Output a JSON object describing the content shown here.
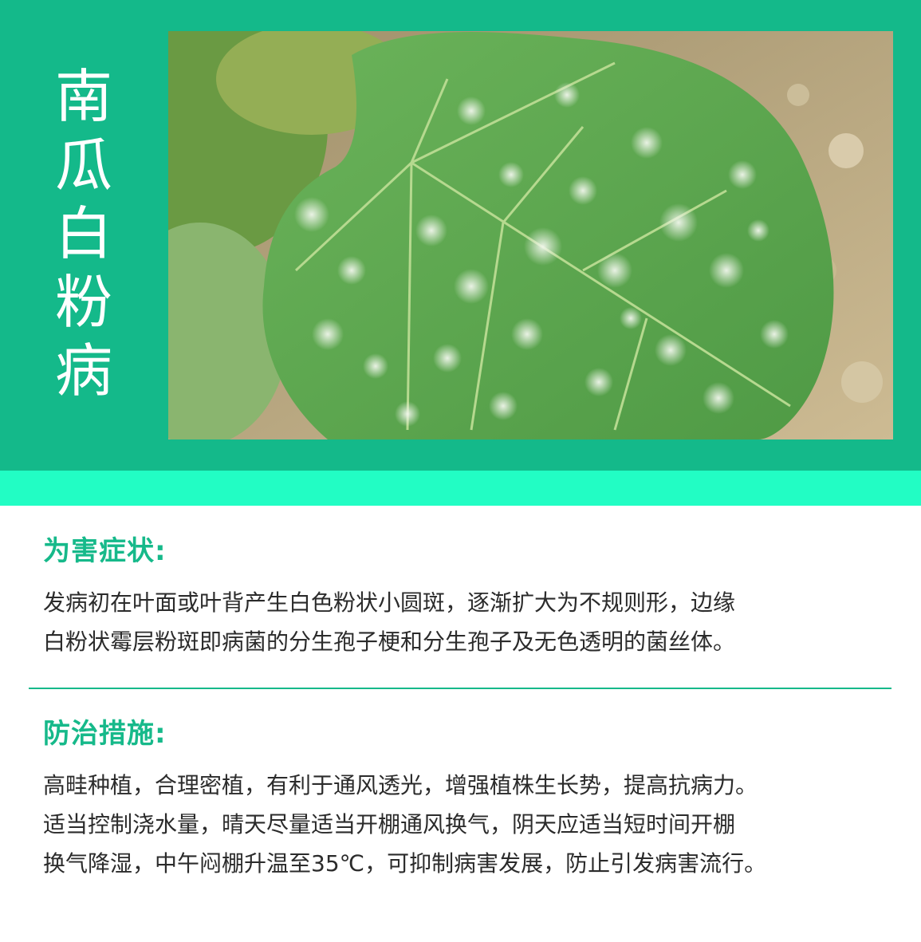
{
  "title": "南瓜白粉病",
  "photo": {
    "subject": "powdery-mildew-leaf-photo",
    "colors": {
      "leaf": "#5aa64e",
      "leaf_dark": "#3d8a3a",
      "vein": "#b6d98f",
      "spot": "#e6efe0",
      "soil": "#b8a47c"
    }
  },
  "colors": {
    "header": "#14b98a",
    "band": "#22fdc4",
    "accent": "#16b98a",
    "text": "#2b2b2b"
  },
  "symptoms": {
    "heading": "为害症状:",
    "lines": [
      "发病初在叶面或叶背产生白色粉状小圆斑，逐渐扩大为不规则形，边缘",
      "白粉状霉层粉斑即病菌的分生孢子梗和分生孢子及无色透明的菌丝体。"
    ]
  },
  "measures": {
    "heading": "防治措施:",
    "lines": [
      "高畦种植，合理密植，有利于通风透光，增强植株生长势，提高抗病力。",
      "适当控制浇水量，晴天尽量适当开棚通风换气，阴天应适当短时间开棚",
      "换气降湿，中午闷棚升温至35℃，可抑制病害发展，防止引发病害流行。"
    ]
  }
}
